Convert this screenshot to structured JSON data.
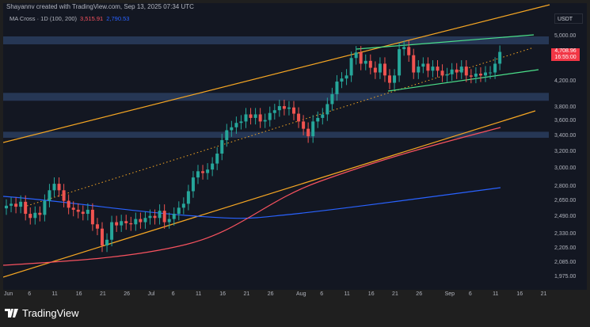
{
  "header": {
    "attribution": "Shayannv created with TradingView.com, Sep 13, 2025 07:34 UTC"
  },
  "indicator": {
    "label": "MA Cross · 1D (100, 200)",
    "ma100_value": "3,515.91",
    "ma200_value": "2,790.53"
  },
  "price_axis": {
    "currency": "USDT",
    "current_price": "4,708.96",
    "countdown": "16:55:00"
  },
  "footer": {
    "logo": "TradingView"
  },
  "colors": {
    "up": "#26a69a",
    "down": "#ef5350",
    "ma100": "#f7525f",
    "ma200": "#2962ff",
    "channel": "#f5a623",
    "wedge": "#4be08a",
    "zone": "#2a3d5e"
  },
  "chart_data": {
    "type": "candlestick",
    "scale": "log",
    "ylim": [
      1975,
      5150
    ],
    "y_ticks": [
      "5,000.00",
      "4,200.00",
      "3,800.00",
      "3,600.00",
      "3,400.00",
      "3,200.00",
      "3,000.00",
      "2,800.00",
      "2,650.00",
      "2,490.00",
      "2,330.00",
      "2,205.00",
      "2,085.00",
      "1,975.00"
    ],
    "y_tick_values": [
      5000,
      4200,
      3800,
      3600,
      3400,
      3200,
      3000,
      2800,
      2650,
      2490,
      2330,
      2205,
      2085,
      1975
    ],
    "x_ticks": [
      "Jun",
      "6",
      "11",
      "16",
      "21",
      "26",
      "Jul",
      "6",
      "11",
      "16",
      "21",
      "26",
      "Aug",
      "6",
      "11",
      "16",
      "21",
      "26",
      "Sep",
      "6",
      "11",
      "16",
      "21"
    ],
    "x_tick_days": [
      0,
      5,
      10,
      15,
      20,
      25,
      30,
      35,
      40,
      45,
      50,
      55,
      61,
      66,
      71,
      76,
      81,
      86,
      92,
      97,
      102,
      107,
      112
    ],
    "start": "Jun 1",
    "closes": [
      2600,
      2620,
      2590,
      2640,
      2520,
      2480,
      2530,
      2510,
      2650,
      2760,
      2830,
      2760,
      2650,
      2580,
      2560,
      2540,
      2520,
      2560,
      2420,
      2380,
      2230,
      2280,
      2440,
      2410,
      2450,
      2430,
      2420,
      2470,
      2440,
      2480,
      2500,
      2480,
      2550,
      2440,
      2470,
      2520,
      2580,
      2620,
      2750,
      2900,
      2970,
      2950,
      2990,
      3060,
      3180,
      3350,
      3480,
      3520,
      3580,
      3600,
      3700,
      3650,
      3700,
      3600,
      3620,
      3720,
      3760,
      3820,
      3780,
      3800,
      3710,
      3600,
      3500,
      3400,
      3600,
      3650,
      3700,
      3850,
      4000,
      4200,
      4250,
      4300,
      4600,
      4700,
      4500,
      4550,
      4430,
      4350,
      4500,
      4300,
      4180,
      4300,
      4760,
      4800,
      4650,
      4350,
      4450,
      4500,
      4380,
      4450,
      4380,
      4300,
      4320,
      4400,
      4350,
      4450,
      4300,
      4280,
      4330,
      4300,
      4350,
      4350,
      4500,
      4710
    ],
    "zones": [
      [
        4850,
        5000
      ],
      [
        3900,
        4020
      ],
      [
        3380,
        3460
      ]
    ]
  }
}
